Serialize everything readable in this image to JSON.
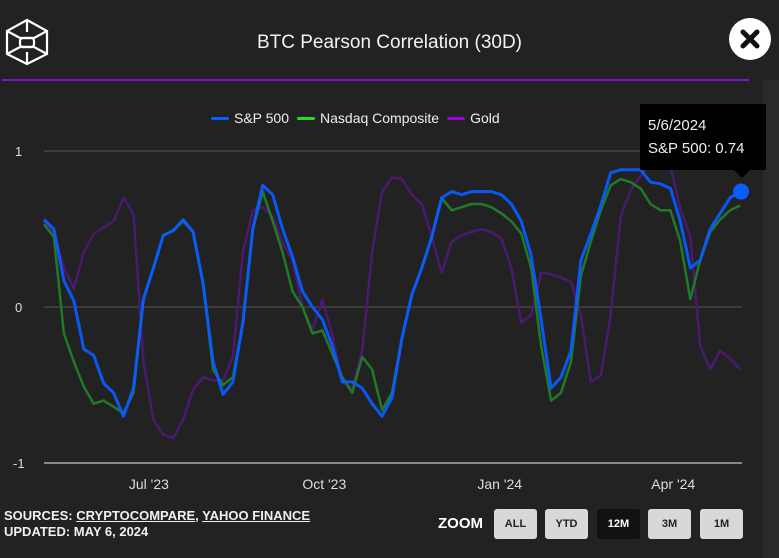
{
  "header": {
    "title": "BTC Pearson Correlation (30D)",
    "logo_name": "cube-logo",
    "close_label": "close"
  },
  "tooltip": {
    "date": "5/6/2024",
    "text": "S&P 500: 0.74"
  },
  "footer": {
    "sources_prefix": "SOURCES: ",
    "source1": "CRYPTOCOMPARE",
    "sep": ", ",
    "source2": "YAHOO FINANCE",
    "updated": "UPDATED: MAY 6, 2024"
  },
  "zoom": {
    "label": "ZOOM",
    "buttons": [
      "ALL",
      "YTD",
      "12M",
      "3M",
      "1M"
    ],
    "active": "12M"
  },
  "colors": {
    "sp500": "#0a5cff",
    "nasdaq": "#1f7a28",
    "gold": "#4b1a70",
    "nasdaq_legend": "#22dd22",
    "gold_legend": "#a000e0",
    "accent": "#8a10c8"
  },
  "chart_data": {
    "type": "line",
    "title": "BTC Pearson Correlation (30D)",
    "xlabel": "",
    "ylabel": "",
    "x_range": [
      "2023-05-07",
      "2024-05-06"
    ],
    "xticks": [
      {
        "label": "Jul '23",
        "date": "2023-07-01"
      },
      {
        "label": "Oct '23",
        "date": "2023-10-01"
      },
      {
        "label": "Jan '24",
        "date": "2024-01-01"
      },
      {
        "label": "Apr '24",
        "date": "2024-04-01"
      }
    ],
    "yticks": [
      {
        "label": "1",
        "value": 1
      },
      {
        "label": "0",
        "value": 0
      },
      {
        "label": "-1",
        "value": -1
      }
    ],
    "ylim": [
      -1,
      1
    ],
    "grid": true,
    "legend": "top-center",
    "sampling": "evenly spaced across x_range",
    "series": [
      {
        "name": "S&P 500",
        "key": "sp500",
        "values": [
          0.56,
          0.5,
          0.17,
          0.04,
          -0.27,
          -0.31,
          -0.49,
          -0.55,
          -0.7,
          -0.52,
          0.05,
          0.25,
          0.46,
          0.49,
          0.56,
          0.48,
          0.15,
          -0.35,
          -0.56,
          -0.48,
          -0.1,
          0.5,
          0.78,
          0.72,
          0.5,
          0.32,
          0.1,
          0.0,
          -0.08,
          -0.25,
          -0.48,
          -0.48,
          -0.52,
          -0.62,
          -0.7,
          -0.58,
          -0.2,
          0.08,
          0.25,
          0.45,
          0.7,
          0.74,
          0.72,
          0.74,
          0.74,
          0.74,
          0.72,
          0.66,
          0.55,
          0.33,
          -0.08,
          -0.52,
          -0.45,
          -0.28,
          0.3,
          0.47,
          0.65,
          0.86,
          0.88,
          0.88,
          0.88,
          0.8,
          0.79,
          0.76,
          0.55,
          0.25,
          0.3,
          0.5,
          0.6,
          0.7,
          0.74
        ]
      },
      {
        "name": "Nasdaq Composite",
        "key": "nasdaq",
        "values": [
          0.53,
          0.45,
          -0.17,
          -0.35,
          -0.51,
          -0.62,
          -0.6,
          -0.64,
          -0.68,
          -0.55,
          0.05,
          0.25,
          0.46,
          0.49,
          0.55,
          0.48,
          0.15,
          -0.4,
          -0.5,
          -0.45,
          -0.1,
          0.5,
          0.74,
          0.55,
          0.35,
          0.1,
          0.0,
          -0.17,
          -0.15,
          -0.3,
          -0.45,
          -0.55,
          -0.32,
          -0.4,
          -0.66,
          -0.55,
          -0.2,
          0.08,
          0.25,
          0.45,
          0.7,
          0.62,
          0.64,
          0.66,
          0.66,
          0.64,
          0.6,
          0.55,
          0.47,
          0.25,
          -0.25,
          -0.6,
          -0.55,
          -0.35,
          0.2,
          0.42,
          0.62,
          0.78,
          0.82,
          0.8,
          0.76,
          0.66,
          0.62,
          0.62,
          0.42,
          0.05,
          0.3,
          0.48,
          0.56,
          0.62,
          0.65
        ]
      },
      {
        "name": "Gold",
        "key": "gold",
        "values": [
          0.55,
          0.48,
          0.25,
          0.12,
          0.35,
          0.47,
          0.51,
          0.55,
          0.7,
          0.6,
          -0.35,
          -0.72,
          -0.82,
          -0.84,
          -0.72,
          -0.53,
          -0.45,
          -0.47,
          -0.47,
          -0.32,
          0.35,
          0.62,
          0.64,
          0.58,
          0.41,
          0.3,
          0.0,
          -0.15,
          0.05,
          -0.18,
          -0.48,
          -0.52,
          -0.28,
          0.35,
          0.74,
          0.83,
          0.82,
          0.72,
          0.66,
          0.45,
          0.22,
          0.42,
          0.46,
          0.48,
          0.5,
          0.48,
          0.44,
          0.25,
          -0.1,
          -0.05,
          0.22,
          0.21,
          0.19,
          0.16,
          -0.05,
          -0.48,
          -0.44,
          -0.05,
          0.58,
          0.75,
          0.84,
          0.92,
          0.95,
          0.9,
          0.63,
          0.45,
          -0.25,
          -0.4,
          -0.28,
          -0.33,
          -0.4
        ]
      }
    ],
    "highlight": {
      "series": "S&P 500",
      "date": "5/6/2024",
      "value": 0.74
    }
  }
}
